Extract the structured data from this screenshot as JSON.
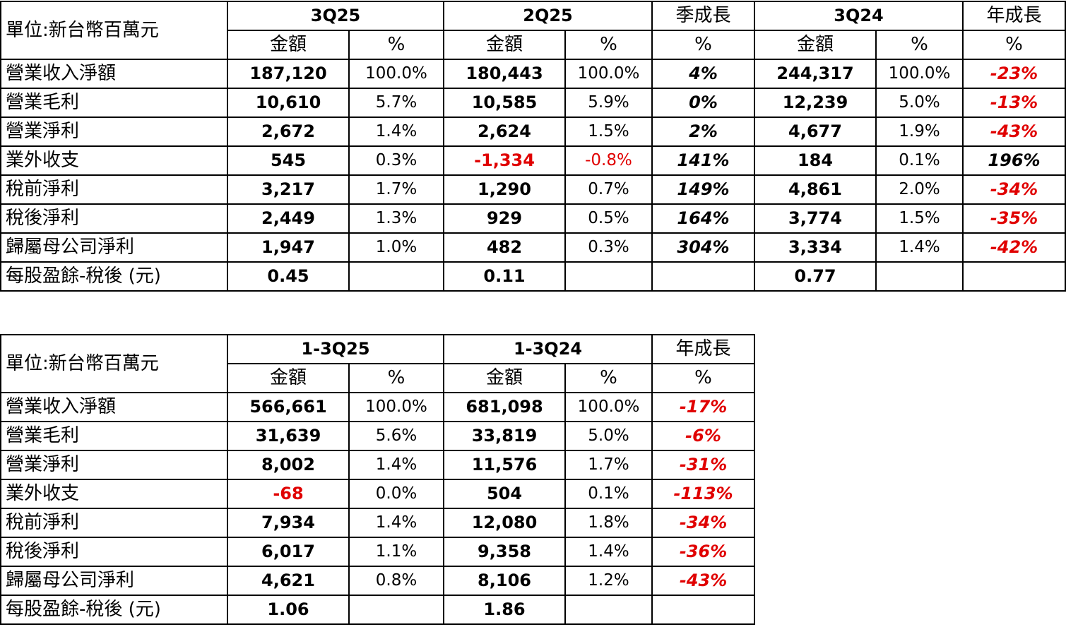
{
  "quarterly": {
    "unit": "單位:新台幣百萬元",
    "headers": [
      "3Q25",
      "2Q25",
      "季成長",
      "3Q24",
      "年成長"
    ],
    "sub_amount": "金額",
    "sub_pct": "%",
    "rows": [
      {
        "label": "營業收入淨額",
        "a1": "187,120",
        "p1": "100.0%",
        "a2": "180,443",
        "p2": "100.0%",
        "qoq": "4%",
        "a3": "244,317",
        "p3": "100.0%",
        "yoy": "-23%"
      },
      {
        "label": "營業毛利",
        "a1": "10,610",
        "p1": "5.7%",
        "a2": "10,585",
        "p2": "5.9%",
        "qoq": "0%",
        "a3": "12,239",
        "p3": "5.0%",
        "yoy": "-13%"
      },
      {
        "label": "營業淨利",
        "a1": "2,672",
        "p1": "1.4%",
        "a2": "2,624",
        "p2": "1.5%",
        "qoq": "2%",
        "a3": "4,677",
        "p3": "1.9%",
        "yoy": "-43%"
      },
      {
        "label": "業外收支",
        "a1": "545",
        "p1": "0.3%",
        "a2": "-1,334",
        "p2": "-0.8%",
        "qoq": "141%",
        "a3": "184",
        "p3": "0.1%",
        "yoy": "196%"
      },
      {
        "label": "稅前淨利",
        "a1": "3,217",
        "p1": "1.7%",
        "a2": "1,290",
        "p2": "0.7%",
        "qoq": "149%",
        "a3": "4,861",
        "p3": "2.0%",
        "yoy": "-34%"
      },
      {
        "label": "稅後淨利",
        "a1": "2,449",
        "p1": "1.3%",
        "a2": "929",
        "p2": "0.5%",
        "qoq": "164%",
        "a3": "3,774",
        "p3": "1.5%",
        "yoy": "-35%"
      },
      {
        "label": "歸屬母公司淨利",
        "a1": "1,947",
        "p1": "1.0%",
        "a2": "482",
        "p2": "0.3%",
        "qoq": "304%",
        "a3": "3,334",
        "p3": "1.4%",
        "yoy": "-42%"
      },
      {
        "label": "每股盈餘-稅後 (元)",
        "a1": "0.45",
        "p1": "",
        "a2": "0.11",
        "p2": "",
        "qoq": "",
        "a3": "0.77",
        "p3": "",
        "yoy": ""
      }
    ]
  },
  "ytd": {
    "unit": "單位:新台幣百萬元",
    "headers": [
      "1-3Q25",
      "1-3Q24",
      "年成長"
    ],
    "sub_amount": "金額",
    "sub_pct": "%",
    "rows": [
      {
        "label": "營業收入淨額",
        "a1": "566,661",
        "p1": "100.0%",
        "a2": "681,098",
        "p2": "100.0%",
        "yoy": "-17%"
      },
      {
        "label": "營業毛利",
        "a1": "31,639",
        "p1": "5.6%",
        "a2": "33,819",
        "p2": "5.0%",
        "yoy": "-6%"
      },
      {
        "label": "營業淨利",
        "a1": "8,002",
        "p1": "1.4%",
        "a2": "11,576",
        "p2": "1.7%",
        "yoy": "-31%"
      },
      {
        "label": "業外收支",
        "a1": "-68",
        "p1": "0.0%",
        "a2": "504",
        "p2": "0.1%",
        "yoy": "-113%"
      },
      {
        "label": "稅前淨利",
        "a1": "7,934",
        "p1": "1.4%",
        "a2": "12,080",
        "p2": "1.8%",
        "yoy": "-34%"
      },
      {
        "label": "稅後淨利",
        "a1": "6,017",
        "p1": "1.1%",
        "a2": "9,358",
        "p2": "1.4%",
        "yoy": "-36%"
      },
      {
        "label": "歸屬母公司淨利",
        "a1": "4,621",
        "p1": "0.8%",
        "a2": "8,106",
        "p2": "1.2%",
        "yoy": "-43%"
      },
      {
        "label": "每股盈餘-稅後 (元)",
        "a1": "1.06",
        "p1": "",
        "a2": "1.86",
        "p2": "",
        "yoy": ""
      }
    ]
  }
}
